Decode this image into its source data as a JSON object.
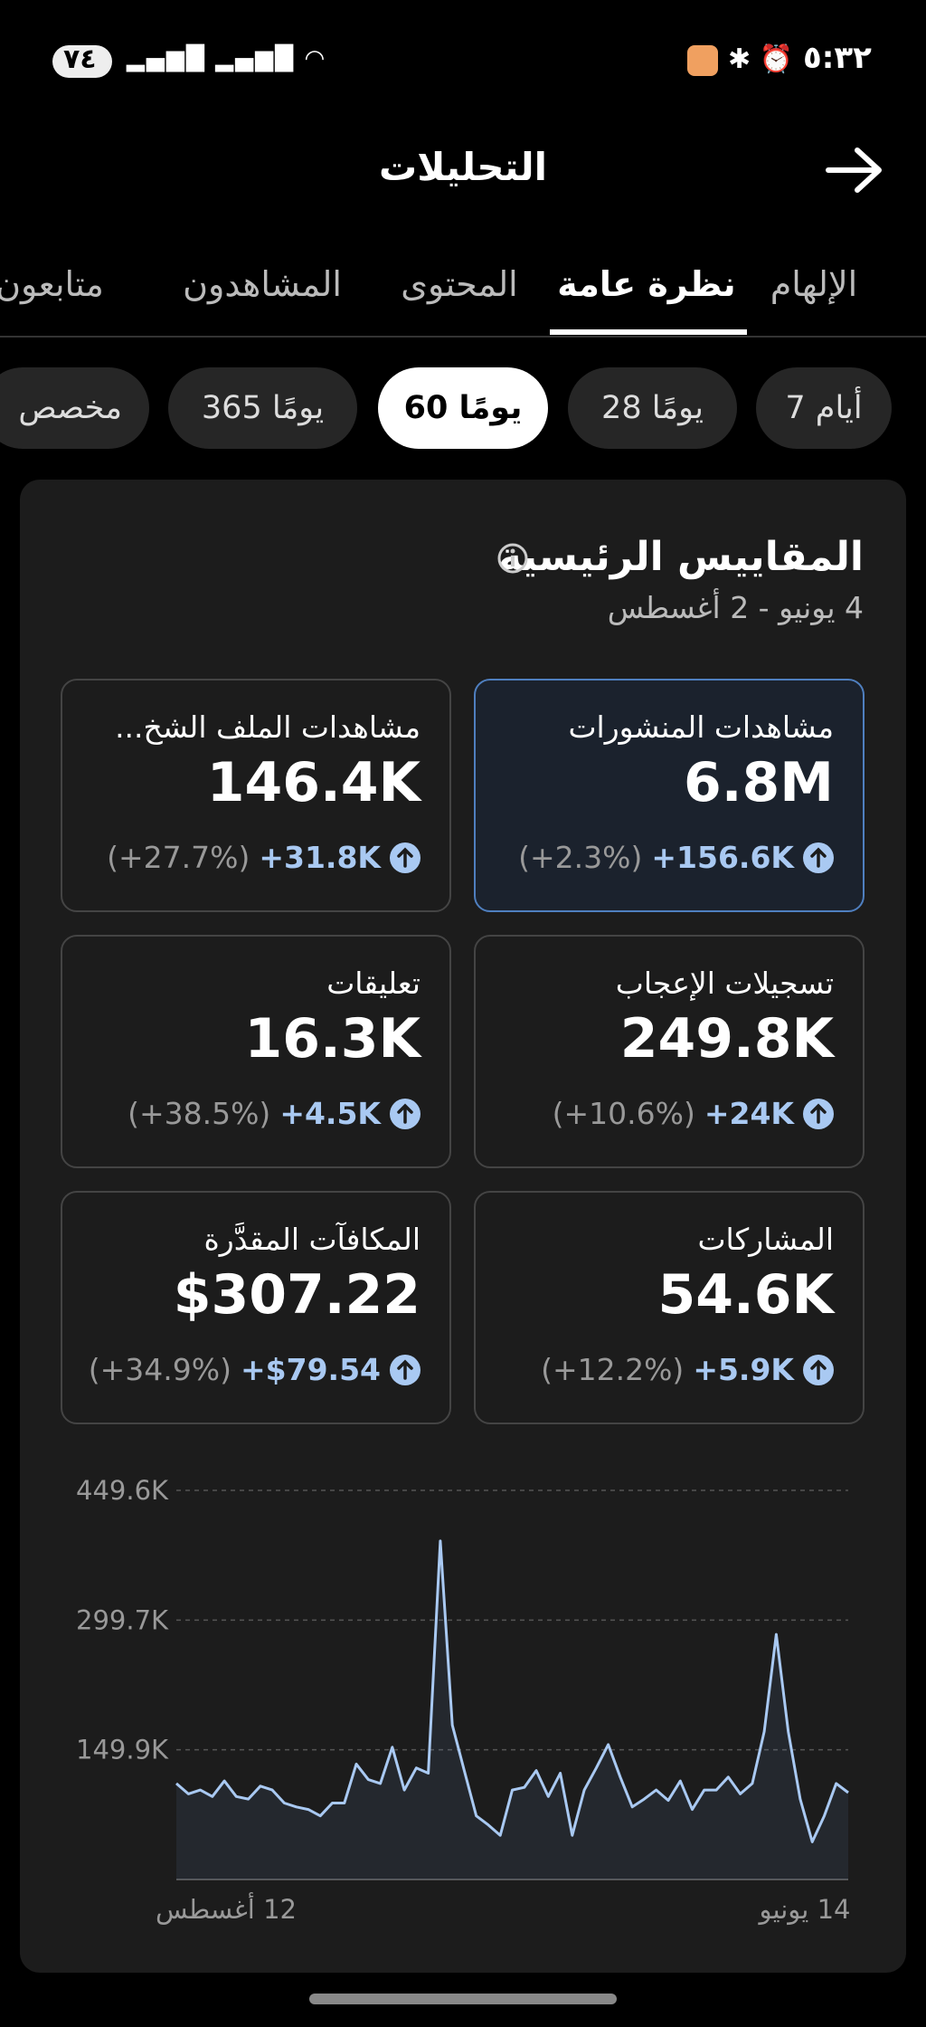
{
  "status_bar": {
    "time": "٥:٣٢",
    "battery": "٧٤"
  },
  "header": {
    "title": "التحليلات"
  },
  "tabs": [
    "الإلهام",
    "نظرة عامة",
    "المحتوى",
    "المشاهدون",
    "متابعون"
  ],
  "active_tab": 1,
  "filters": [
    "7 أيام",
    "28 يومًا",
    "60 يومًا",
    "365 يومًا",
    "مخصص"
  ],
  "active_filter": 2,
  "metrics": {
    "title": "المقاييس الرئيسية",
    "date_range": "4 يونيو - 2 أغسطس",
    "cards": [
      {
        "label": "مشاهدات المنشورات",
        "value": "6.8M",
        "change": "+156.6K",
        "percent": "(+2.3%)"
      },
      {
        "label": "مشاهدات الملف الشخ...",
        "value": "146.4K",
        "change": "+31.8K",
        "percent": "(+27.7%)"
      },
      {
        "label": "تسجيلات الإعجاب",
        "value": "249.8K",
        "change": "+24K",
        "percent": "(+10.6%)"
      },
      {
        "label": "تعليقات",
        "value": "16.3K",
        "change": "+4.5K",
        "percent": "(+38.5%)"
      },
      {
        "label": "المشاركات",
        "value": "54.6K",
        "change": "+5.9K",
        "percent": "(+12.2%)"
      },
      {
        "label": "المكافآت المقدَّرة",
        "value": "$307.22",
        "change": "+$79.54",
        "percent": "(+34.9%)"
      }
    ],
    "highlighted_card": 0
  },
  "chart": {
    "type": "line",
    "color": "#a9c9f2",
    "values": [
      100.4,
      110.9,
      73.5,
      43.5,
      92.9,
      170.9,
      283.3,
      170.9,
      110.9,
      98.9,
      118.4,
      103.4,
      103.4,
      80.9,
      113.9,
      91.4,
      103.4,
      92.9,
      83.9,
      118.4,
      155.9,
      128.9,
      103.4,
      51.0,
      122.9,
      95.9,
      125.9,
      106.4,
      103.4,
      51.0,
      63.0,
      73.5,
      125.9,
      178.4,
      391.2,
      122.9,
      128.9,
      103.4,
      152.9,
      110.9,
      115.4,
      133.4,
      88.4,
      88.4,
      73.5,
      80.9,
      83.9,
      88.4,
      103.4,
      107.9,
      92.9,
      95.9,
      113.9,
      95.9,
      103.4,
      98.9,
      110.9
    ],
    "ylim": [
      0,
      449.6
    ],
    "yticks": [
      {
        "value": 149.9,
        "label": "149.9K"
      },
      {
        "value": 299.7,
        "label": "299.7K"
      },
      {
        "value": 449.6,
        "label": "449.6K"
      }
    ],
    "x_labels": [
      "12 أغسطس",
      "14 يونيو"
    ],
    "grid": true
  }
}
